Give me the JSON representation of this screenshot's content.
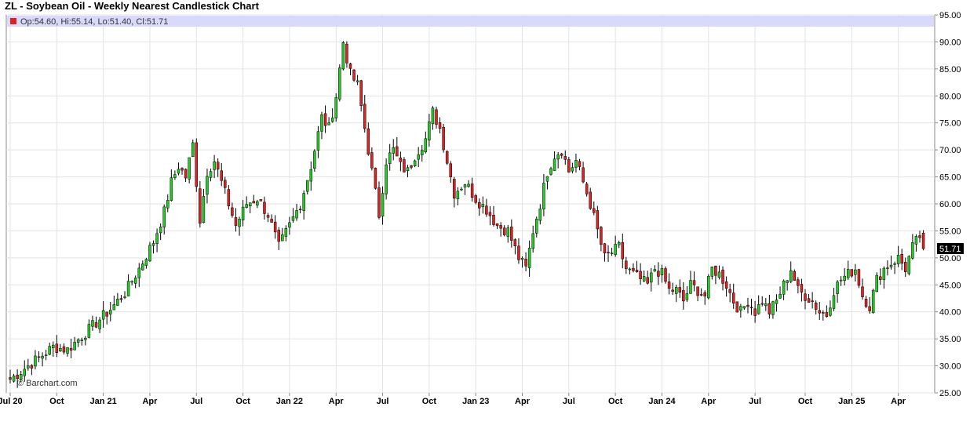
{
  "chart_data": {
    "type": "candlestick",
    "title": "ZL - Soybean Oil - Weekly Nearest Candlestick Chart",
    "ohlc_label": "Op:54.60, Hi:55.14, Lo:51.40, Cl:51.71",
    "last_price_label": "51.71",
    "watermark": "© Barchart.com",
    "ylim": [
      25,
      95
    ],
    "y_ticks": [
      "25.00",
      "30.00",
      "35.00",
      "40.00",
      "45.00",
      "50.00",
      "55.00",
      "60.00",
      "65.00",
      "70.00",
      "75.00",
      "80.00",
      "85.00",
      "90.00",
      "95.00"
    ],
    "x_ticks": [
      {
        "label": "Jul 20",
        "week": 0
      },
      {
        "label": "Oct",
        "week": 13
      },
      {
        "label": "Jan 21",
        "week": 26
      },
      {
        "label": "Apr",
        "week": 39
      },
      {
        "label": "Jul",
        "week": 52
      },
      {
        "label": "Oct",
        "week": 65
      },
      {
        "label": "Jan 22",
        "week": 78
      },
      {
        "label": "Apr",
        "week": 91
      },
      {
        "label": "Jul",
        "week": 104
      },
      {
        "label": "Oct",
        "week": 117
      },
      {
        "label": "Jan 23",
        "week": 130
      },
      {
        "label": "Apr",
        "week": 143
      },
      {
        "label": "Jul",
        "week": 156
      },
      {
        "label": "Oct",
        "week": 169
      },
      {
        "label": "Jan 24",
        "week": 182
      },
      {
        "label": "Apr",
        "week": 195
      },
      {
        "label": "Jul",
        "week": 208
      },
      {
        "label": "Oct",
        "week": 222
      },
      {
        "label": "Jan 25",
        "week": 235
      },
      {
        "label": "Apr",
        "week": 248
      }
    ],
    "grid": true,
    "up_color": "#22cc22",
    "down_color": "#dd2222",
    "anchors_close": [
      [
        0,
        27.5
      ],
      [
        4,
        29.5
      ],
      [
        8,
        31.5
      ],
      [
        12,
        33.5
      ],
      [
        16,
        33
      ],
      [
        20,
        35.5
      ],
      [
        24,
        38
      ],
      [
        28,
        40.5
      ],
      [
        32,
        43.5
      ],
      [
        36,
        48
      ],
      [
        40,
        53
      ],
      [
        43,
        58.5
      ],
      [
        45,
        64
      ],
      [
        47,
        67
      ],
      [
        49,
        65
      ],
      [
        51,
        71
      ],
      [
        53,
        57
      ],
      [
        55,
        66
      ],
      [
        57,
        68
      ],
      [
        60,
        62
      ],
      [
        63,
        56
      ],
      [
        66,
        60
      ],
      [
        69,
        61
      ],
      [
        72,
        58
      ],
      [
        75,
        52
      ],
      [
        78,
        56
      ],
      [
        81,
        60
      ],
      [
        84,
        67
      ],
      [
        87,
        76
      ],
      [
        89,
        74
      ],
      [
        91,
        80
      ],
      [
        93,
        90
      ],
      [
        95,
        84
      ],
      [
        97,
        82
      ],
      [
        99,
        74
      ],
      [
        101,
        66
      ],
      [
        103,
        58
      ],
      [
        105,
        68
      ],
      [
        107,
        70
      ],
      [
        109,
        67
      ],
      [
        111,
        66
      ],
      [
        113,
        69
      ],
      [
        116,
        72
      ],
      [
        118,
        77
      ],
      [
        120,
        74
      ],
      [
        122,
        68
      ],
      [
        124,
        62
      ],
      [
        127,
        64
      ],
      [
        130,
        61
      ],
      [
        133,
        59
      ],
      [
        136,
        56
      ],
      [
        139,
        55
      ],
      [
        142,
        50
      ],
      [
        144,
        48
      ],
      [
        146,
        55
      ],
      [
        148,
        60
      ],
      [
        150,
        66
      ],
      [
        152,
        69
      ],
      [
        154,
        70
      ],
      [
        156,
        66
      ],
      [
        158,
        68
      ],
      [
        160,
        64
      ],
      [
        162,
        60
      ],
      [
        164,
        55
      ],
      [
        166,
        50
      ],
      [
        168,
        51
      ],
      [
        170,
        52
      ],
      [
        172,
        48
      ],
      [
        174,
        47
      ],
      [
        176,
        46
      ],
      [
        178,
        45
      ],
      [
        180,
        48
      ],
      [
        182,
        47
      ],
      [
        184,
        44
      ],
      [
        186,
        44
      ],
      [
        188,
        42
      ],
      [
        190,
        45
      ],
      [
        192,
        44
      ],
      [
        194,
        43
      ],
      [
        196,
        48
      ],
      [
        198,
        47
      ],
      [
        200,
        45
      ],
      [
        202,
        42
      ],
      [
        204,
        40
      ],
      [
        206,
        42
      ],
      [
        208,
        40
      ],
      [
        210,
        42
      ],
      [
        212,
        40
      ],
      [
        214,
        42
      ],
      [
        216,
        45
      ],
      [
        218,
        48
      ],
      [
        220,
        44
      ],
      [
        222,
        43
      ],
      [
        224,
        42
      ],
      [
        226,
        40
      ],
      [
        228,
        39.5
      ],
      [
        230,
        44
      ],
      [
        232,
        46
      ],
      [
        234,
        47
      ],
      [
        236,
        48
      ],
      [
        238,
        43
      ],
      [
        240,
        41
      ],
      [
        242,
        46
      ],
      [
        244,
        48
      ],
      [
        246,
        49
      ],
      [
        248,
        50
      ],
      [
        250,
        48
      ],
      [
        252,
        52
      ],
      [
        254,
        54
      ],
      [
        255,
        51.71
      ]
    ],
    "seed": 7,
    "last_candle": {
      "open": 54.6,
      "high": 55.14,
      "low": 51.4,
      "close": 51.71
    }
  }
}
